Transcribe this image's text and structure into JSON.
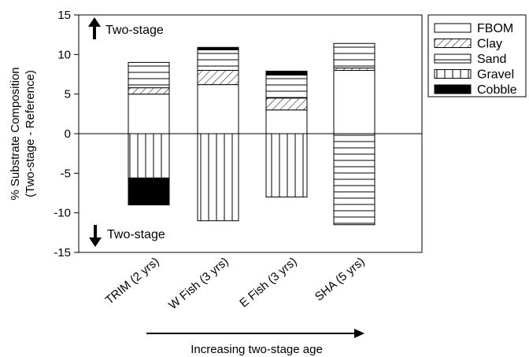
{
  "chart_data": {
    "type": "bar",
    "stacked": true,
    "categories": [
      "TRIM (2 yrs)",
      "W Fish (3 yrs)",
      "E Fish (3 yrs)",
      "SHA (5 yrs)"
    ],
    "series": [
      {
        "name": "FBOM",
        "pattern": "none",
        "values": [
          5.0,
          6.2,
          3.0,
          8.0
        ]
      },
      {
        "name": "Clay",
        "pattern": "diagonal",
        "values": [
          0.8,
          1.8,
          1.5,
          0.3
        ]
      },
      {
        "name": "Sand",
        "pattern": "horizontal",
        "values": [
          3.2,
          2.6,
          2.9,
          3.1
        ]
      },
      {
        "name": "Gravel",
        "pattern": "vertical",
        "values": [
          -5.6,
          -11.0,
          -8.0,
          0
        ]
      },
      {
        "name": "Cobble",
        "pattern": "solid",
        "values": [
          -3.4,
          0.3,
          0.5,
          0
        ]
      }
    ],
    "sha_negative_pattern": "horizontal",
    "sha_negative_value": -11.5,
    "ylabel_line1": "% Substrate Composition",
    "ylabel_line2": "(Two-stage - Reference)",
    "xlabel": "Increasing two-stage age",
    "yticks": [
      -15,
      -10,
      -5,
      0,
      5,
      10,
      15
    ],
    "ylim": [
      -15,
      15
    ],
    "legend_position": "top-right",
    "annotations": {
      "up": "Two-stage",
      "down": "Two-stage"
    },
    "colors": {
      "fill": "#ffffff",
      "stroke": "#000000",
      "solid": "#000000"
    }
  }
}
